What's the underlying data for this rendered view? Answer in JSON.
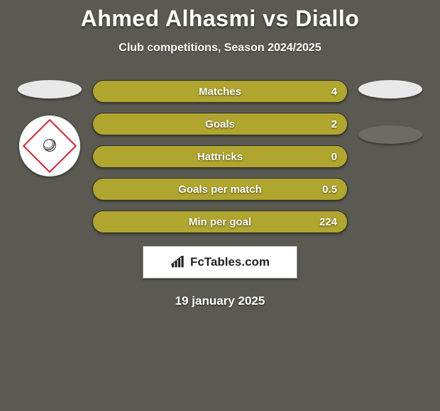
{
  "title": "Ahmed Alhasmi vs Diallo",
  "subtitle": "Club competitions, Season 2024/2025",
  "date": "19 january 2025",
  "brand": "FcTables.com",
  "colors": {
    "background": "#5a5a53",
    "pill_fill": "#b0a52f",
    "pill_border": "#2f2f24",
    "ellipse_left": "#e8e8e8",
    "ellipse_right_1": "#e8e8e8",
    "ellipse_right_2": "#6c6c64",
    "text": "#ffffff",
    "brand_bg": "#ffffff",
    "brand_text": "#222222"
  },
  "typography": {
    "title_fontsize": 32,
    "subtitle_fontsize": 16,
    "stat_fontsize": 15,
    "date_fontsize": 17,
    "font_family": "Arial"
  },
  "chart": {
    "type": "infographic",
    "pill_width": 360,
    "pill_height": 32,
    "fill_percent": 100
  },
  "stats": [
    {
      "label": "Matches",
      "value": "4"
    },
    {
      "label": "Goals",
      "value": "2"
    },
    {
      "label": "Hattricks",
      "value": "0"
    },
    {
      "label": "Goals per match",
      "value": "0.5"
    },
    {
      "label": "Min per goal",
      "value": "224"
    }
  ]
}
